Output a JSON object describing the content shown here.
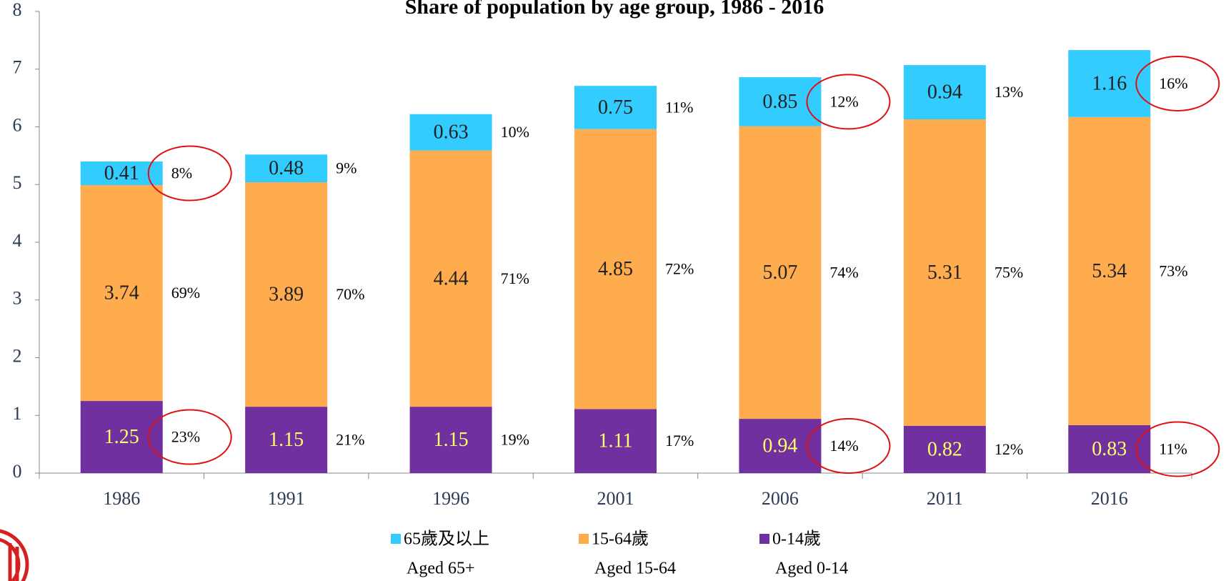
{
  "chart_data": {
    "type": "bar",
    "stacked": true,
    "title": "Share of population by age group, 1986 - 2016",
    "categories": [
      "1986",
      "1991",
      "1996",
      "2001",
      "2006",
      "2011",
      "2016"
    ],
    "ylim": [
      0,
      8
    ],
    "yticks": [
      0,
      1,
      2,
      3,
      4,
      5,
      6,
      7,
      8
    ],
    "series": [
      {
        "name": "0-14歲",
        "name_en": "Aged 0-14",
        "color": "#7030a0",
        "label_color": "#ffff66",
        "values": [
          1.25,
          1.15,
          1.15,
          1.11,
          0.94,
          0.82,
          0.83
        ],
        "share_labels": [
          "23%",
          "21%",
          "19%",
          "17%",
          "14%",
          "12%",
          "11%"
        ]
      },
      {
        "name": "15-64歲",
        "name_en": "Aged 15-64",
        "color": "#ffac4f",
        "label_color": "#222222",
        "values": [
          3.74,
          3.89,
          4.44,
          4.85,
          5.07,
          5.31,
          5.34
        ],
        "share_labels": [
          "69%",
          "70%",
          "71%",
          "72%",
          "74%",
          "75%",
          "73%"
        ]
      },
      {
        "name": "65歲及以上",
        "name_en": "Aged 65+",
        "color": "#33ccff",
        "label_color": "#222222",
        "values": [
          0.41,
          0.48,
          0.63,
          0.75,
          0.85,
          0.94,
          1.16
        ],
        "share_labels": [
          "8%",
          "9%",
          "10%",
          "11%",
          "12%",
          "13%",
          "16%"
        ]
      }
    ]
  }
}
